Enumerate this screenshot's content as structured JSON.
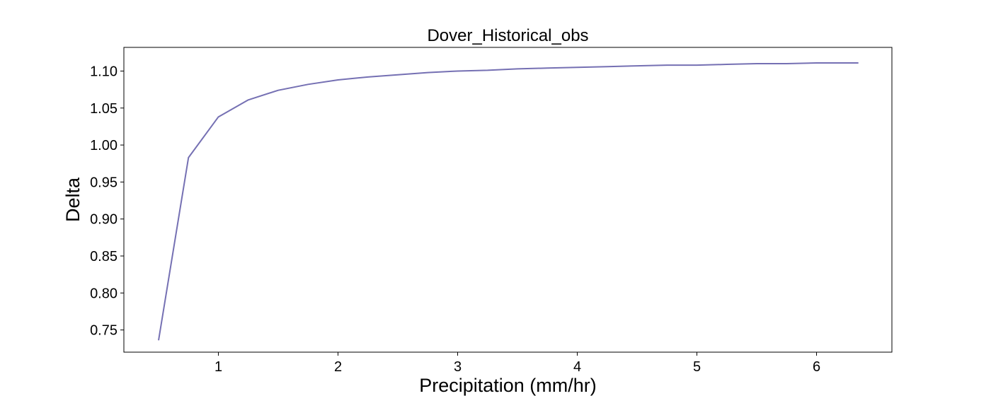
{
  "chart_data": {
    "type": "line",
    "title": "Dover_Historical_obs",
    "xlabel": "Precipitation (mm/hr)",
    "ylabel": "Delta",
    "xlim": [
      0.21,
      6.63
    ],
    "ylim": [
      0.72,
      1.132
    ],
    "xticks": [
      1,
      2,
      3,
      4,
      5,
      6
    ],
    "xtick_labels": [
      "1",
      "2",
      "3",
      "4",
      "5",
      "6"
    ],
    "yticks": [
      0.75,
      0.8,
      0.85,
      0.9,
      0.95,
      1.0,
      1.05,
      1.1
    ],
    "ytick_labels": [
      "0.75",
      "0.80",
      "0.85",
      "0.90",
      "0.95",
      "1.00",
      "1.05",
      "1.10"
    ],
    "grid": false,
    "series": [
      {
        "color": "#7570b3",
        "x": [
          0.5,
          0.75,
          1.0,
          1.25,
          1.5,
          1.75,
          2.0,
          2.25,
          2.5,
          2.75,
          3.0,
          3.25,
          3.5,
          3.75,
          4.0,
          4.25,
          4.5,
          4.75,
          5.0,
          5.25,
          5.5,
          5.75,
          6.0,
          6.35
        ],
        "y": [
          0.736,
          0.983,
          1.038,
          1.061,
          1.074,
          1.082,
          1.088,
          1.092,
          1.095,
          1.098,
          1.1,
          1.101,
          1.103,
          1.104,
          1.105,
          1.106,
          1.107,
          1.108,
          1.108,
          1.109,
          1.11,
          1.11,
          1.111,
          1.111
        ]
      }
    ]
  }
}
